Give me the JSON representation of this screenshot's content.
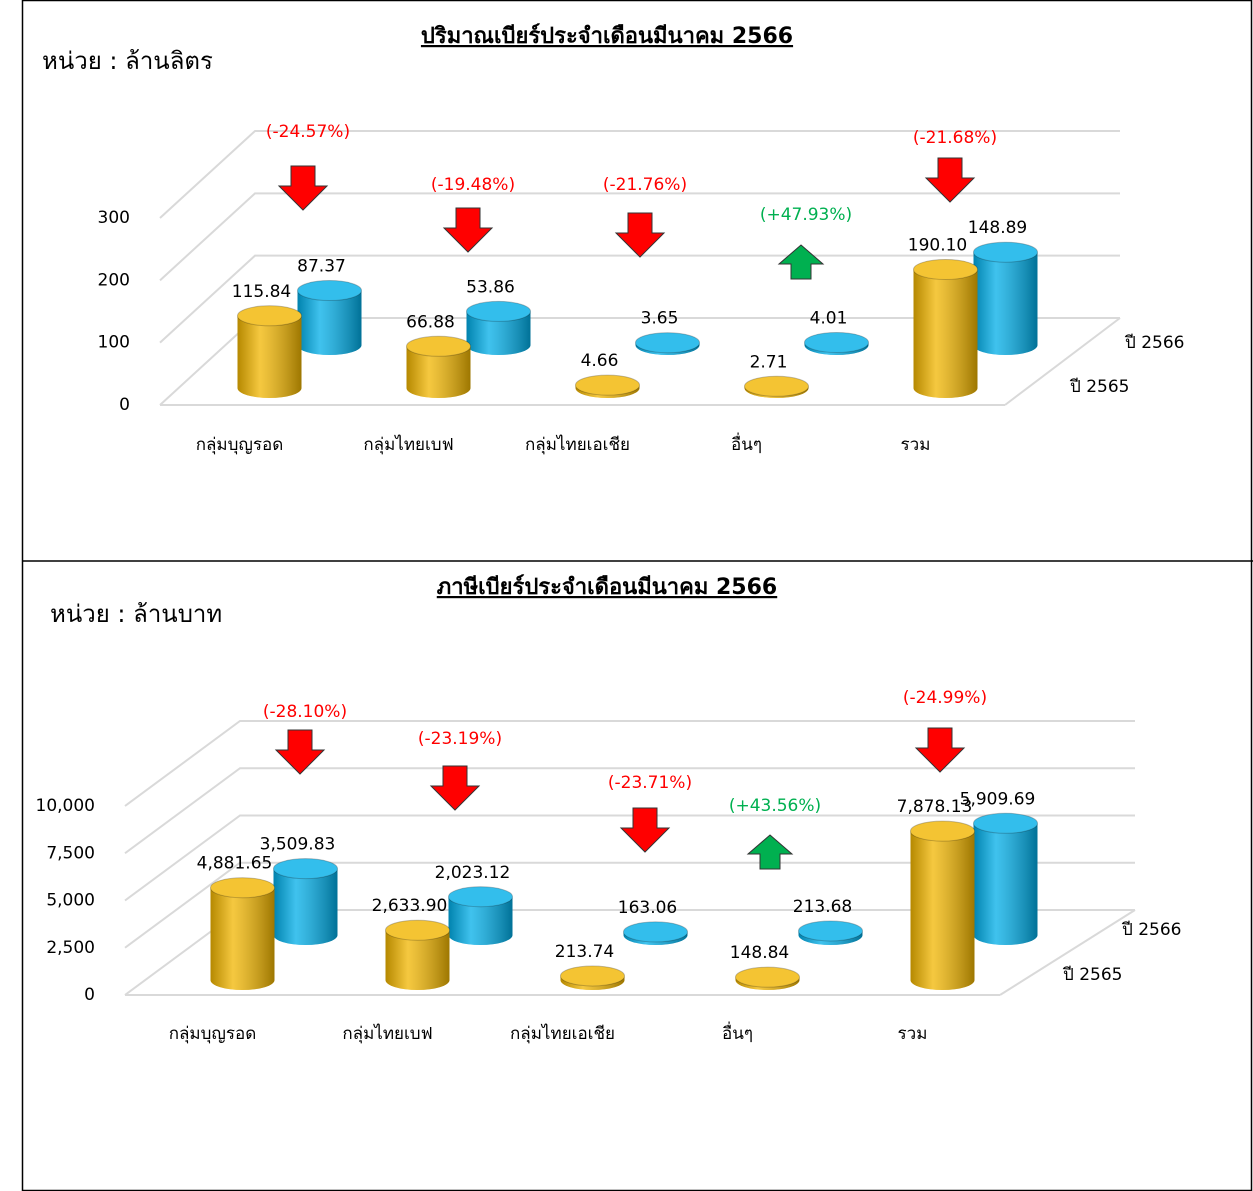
{
  "chart_data": [
    {
      "type": "bar",
      "title": "ปริมาณเบียร์ประจำเดือนมีนาคม 2566",
      "unit_label": "หน่วย : ล้านลิตร",
      "categories": [
        "กลุ่มบุญรอด",
        "กลุ่มไทยเบฟ",
        "กลุ่มไทยเอเชีย",
        "อื่นๆ",
        "รวม"
      ],
      "series": [
        {
          "name": "ปี 2565",
          "color": "#f2b600",
          "values": [
            115.84,
            66.88,
            4.66,
            2.71,
            190.1
          ],
          "value_labels": [
            "115.84",
            "66.88",
            "4.66",
            "2.71",
            "190.10"
          ]
        },
        {
          "name": "ปี 2566",
          "color": "#00aee8",
          "values": [
            87.37,
            53.86,
            3.65,
            4.01,
            148.89
          ],
          "value_labels": [
            "87.37",
            "53.86",
            "3.65",
            "4.01",
            "148.89"
          ]
        }
      ],
      "changes": [
        -24.57,
        -19.48,
        -21.76,
        47.93,
        -21.68
      ],
      "change_labels": [
        "(-24.57%)",
        "(-19.48%)",
        "(-21.76%)",
        "(+47.93%)",
        "(-21.68%)"
      ],
      "ylim": [
        0,
        300
      ],
      "yticks": [
        0,
        100,
        200,
        300
      ],
      "grid": true
    },
    {
      "type": "bar",
      "title": "ภาษีเบียร์ประจำเดือนมีนาคม 2566",
      "unit_label": "หน่วย : ล้านบาท",
      "categories": [
        "กลุ่มบุญรอด",
        "กลุ่มไทยเบฟ",
        "กลุ่มไทยเอเชีย",
        "อื่นๆ",
        "รวม"
      ],
      "series": [
        {
          "name": "ปี 2565",
          "color": "#f2b600",
          "values": [
            4881.65,
            2633.9,
            213.74,
            148.84,
            7878.13
          ],
          "value_labels": [
            "4,881.65",
            "2,633.90",
            "213.74",
            "148.84",
            "7,878.13"
          ]
        },
        {
          "name": "ปี 2566",
          "color": "#00aee8",
          "values": [
            3509.83,
            2023.12,
            163.06,
            213.68,
            5909.69
          ],
          "value_labels": [
            "3,509.83",
            "2,023.12",
            "163.06",
            "213.68",
            "5,909.69"
          ]
        }
      ],
      "changes": [
        -28.1,
        -23.19,
        -23.71,
        43.56,
        -24.99
      ],
      "change_labels": [
        "(-28.10%)",
        "(-23.19%)",
        "(-23.71%)",
        "(+43.56%)",
        "(-24.99%)"
      ],
      "ylim": [
        0,
        10000
      ],
      "yticks": [
        0,
        {
          "value": 2500,
          "label": "2,500"
        },
        {
          "value": 5000,
          "label": "5,000"
        },
        {
          "value": 7500,
          "label": "7,500"
        },
        {
          "value": 10000,
          "label": "10,000"
        }
      ],
      "grid": true
    }
  ]
}
